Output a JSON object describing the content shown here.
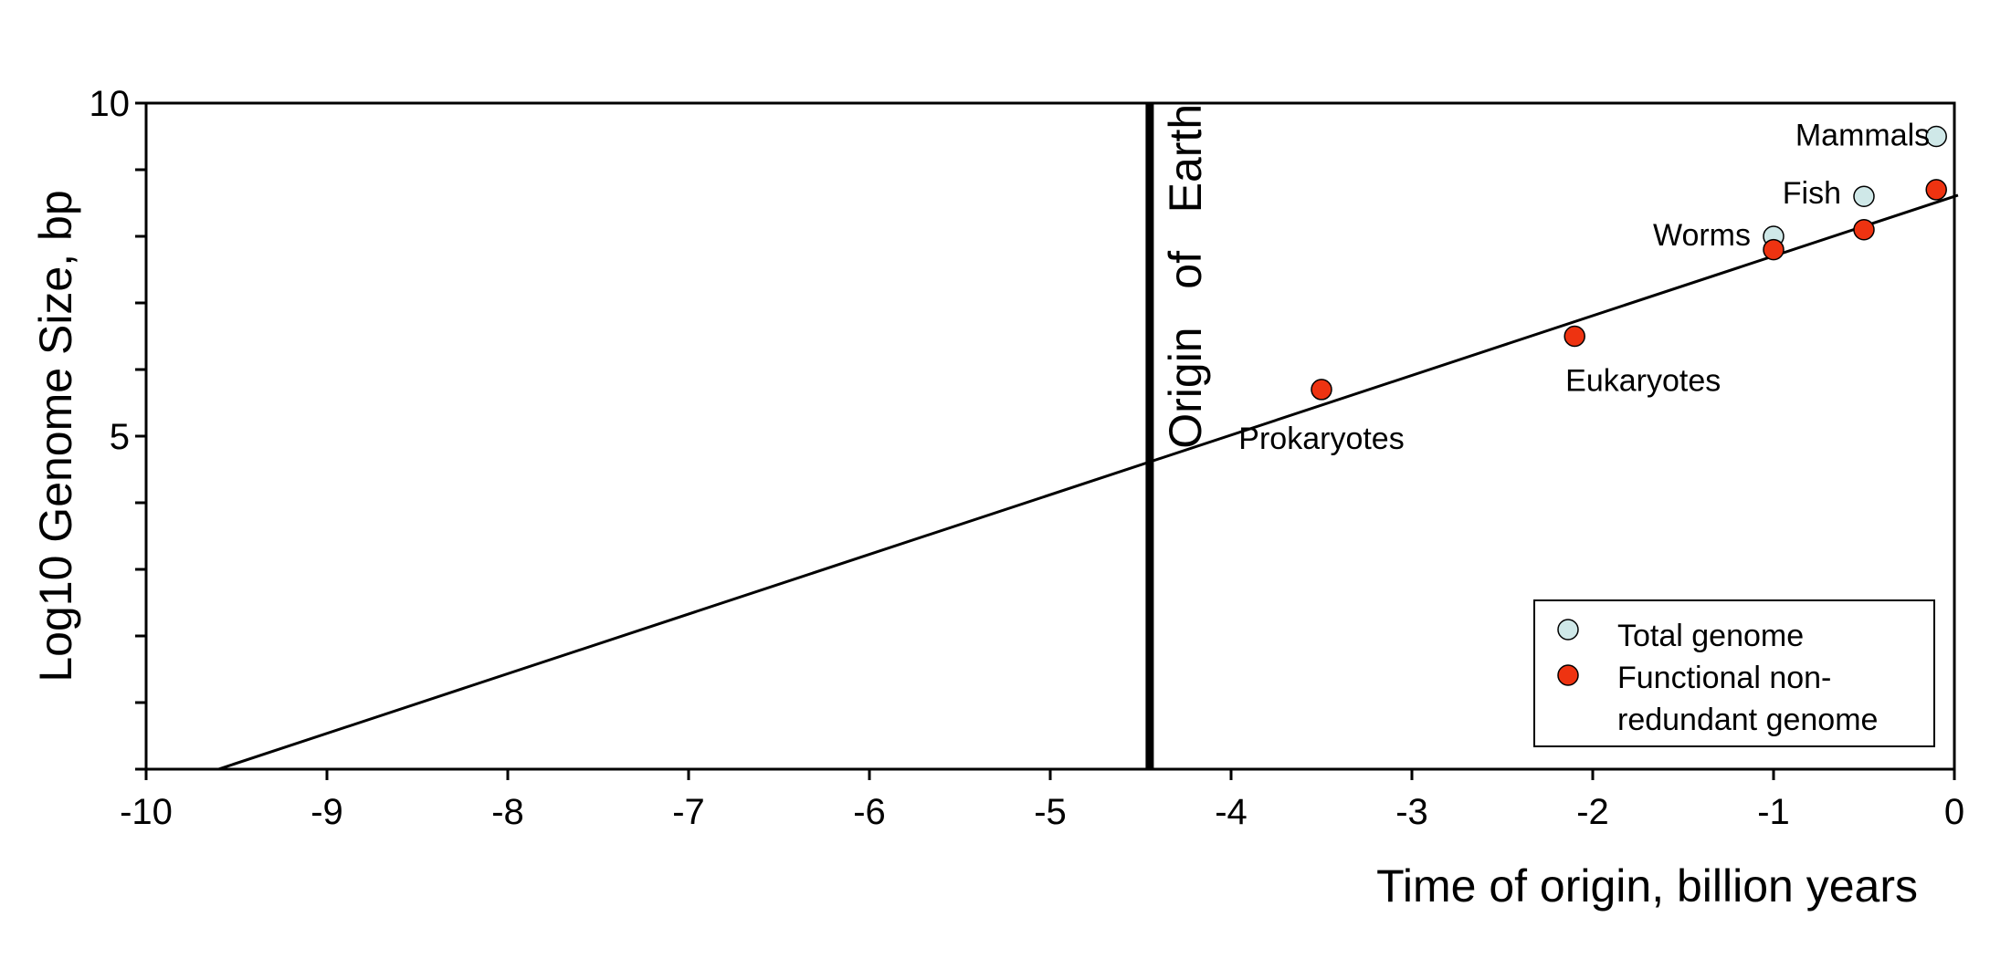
{
  "chart_data": {
    "type": "scatter",
    "xlabel": "Time of origin, billion years",
    "ylabel": "Log10 Genome Size, bp",
    "xlim": [
      -10,
      0
    ],
    "ylim": [
      0,
      10
    ],
    "x_ticks": [
      -10,
      -9,
      -8,
      -7,
      -6,
      -5,
      -4,
      -3,
      -2,
      -1,
      0
    ],
    "x_tick_labels": [
      "-10",
      "-9",
      "-8",
      "-7",
      "-6",
      "-5",
      "-4",
      "-3",
      "-2",
      "-1",
      "0"
    ],
    "y_ticks": [
      0,
      1,
      2,
      3,
      4,
      5,
      6,
      7,
      8,
      9,
      10
    ],
    "y_tick_labels": [
      "",
      "",
      "",
      "",
      "",
      "5",
      "",
      "",
      "",
      "",
      "10"
    ],
    "grid": false,
    "legend_position": "bottom-right",
    "series": [
      {
        "name": "Total genome",
        "color": "#cfe8e8",
        "points": [
          {
            "x": -1.0,
            "y": 8.0,
            "label": "Worms"
          },
          {
            "x": -0.5,
            "y": 8.6,
            "label": "Fish"
          },
          {
            "x": -0.1,
            "y": 9.5,
            "label": "Mammals"
          }
        ]
      },
      {
        "name": "Functional non-redundant genome",
        "legend_lines": [
          "Functional non-",
          "redundant genome"
        ],
        "color": "#ee3311",
        "points": [
          {
            "x": -3.5,
            "y": 5.7,
            "label": "Prokaryotes"
          },
          {
            "x": -2.1,
            "y": 6.5,
            "label": "Eukaryotes"
          },
          {
            "x": -1.0,
            "y": 7.8,
            "label": ""
          },
          {
            "x": -0.5,
            "y": 8.1,
            "label": ""
          },
          {
            "x": -0.1,
            "y": 8.7,
            "label": ""
          }
        ]
      }
    ],
    "trend_line": {
      "x": [
        -9.6,
        0
      ],
      "y": [
        0,
        8.6
      ]
    },
    "reference_line": {
      "x": -4.45,
      "label": "Origin   of   Earth"
    }
  }
}
